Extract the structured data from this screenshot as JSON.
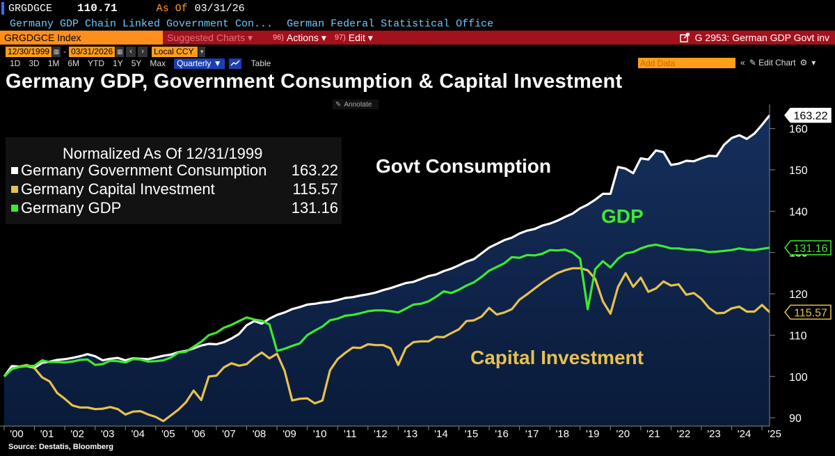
{
  "header": {
    "ticker": "GRGDGCE",
    "price": "110.71",
    "as_of_label": "As Of",
    "as_of_date": "03/31/26",
    "description": "Germany GDP Chain Linked Government Con...",
    "source_name": "German Federal Statistical Office"
  },
  "toolbar": {
    "index_label": "GRGDGCE Index",
    "suggested_label": "Suggested Charts",
    "actions_num": "96)",
    "actions_label": "Actions",
    "edit_num": "97)",
    "edit_label": "Edit",
    "chart_id_label": "G 2953: German GDP Govt inv"
  },
  "range": {
    "start_date": "12/30/1999",
    "end_date": "03/31/2026",
    "currency": "Local CCY"
  },
  "periods": [
    "1D",
    "3D",
    "1M",
    "6M",
    "YTD",
    "1Y",
    "5Y",
    "Max"
  ],
  "frequency": "Quarterly",
  "table_label": "Table",
  "add_data_placeholder": "Add Data",
  "edit_chart_label": "Edit Chart",
  "annotate_label": "Annotate",
  "chart_data": {
    "type": "line",
    "title": "Germany GDP, Government Consumption & Capital Investment",
    "legend_header": "Normalized As Of 12/31/1999",
    "xlabel": "",
    "ylabel": "",
    "ylim": [
      88,
      165
    ],
    "yticks": [
      90,
      100,
      110,
      120,
      130,
      140,
      150,
      160
    ],
    "xticks": [
      "'00",
      "'01",
      "'02",
      "'03",
      "'04",
      "'05",
      "'06",
      "'07",
      "'08",
      "'09",
      "'10",
      "'11",
      "'12",
      "'13",
      "'14",
      "'15",
      "'16",
      "'17",
      "'18",
      "'19",
      "'20",
      "'21",
      "'22",
      "'23",
      "'24",
      "'25"
    ],
    "x_start": 2000.0,
    "x_step": 0.25,
    "grid": false,
    "legend_position": "top-left",
    "annotations": [
      {
        "text": "Govt Consumption",
        "color": "#ffffff"
      },
      {
        "text": "GDP",
        "color": "#3dea2f"
      },
      {
        "text": "Capital Investment",
        "color": "#e7c14d"
      }
    ],
    "source": "Source: Destatis, Bloomberg",
    "series": [
      {
        "name": "Germany Government Consumption",
        "last_value": "163.22",
        "color": "#ffffff",
        "fill": true,
        "values": [
          100,
          102.5,
          102.4,
          102.5,
          102.1,
          103.3,
          103.6,
          104.0,
          104.2,
          104.5,
          104.9,
          105.4,
          104.9,
          103.9,
          104.3,
          104.5,
          103.9,
          104.4,
          104.3,
          104.2,
          104.6,
          105.0,
          105.3,
          105.9,
          106.2,
          106.8,
          107.5,
          107.9,
          107.8,
          108.3,
          109.2,
          110.3,
          112.4,
          113.4,
          112.8,
          114.0,
          114.9,
          115.5,
          116.3,
          116.8,
          117.4,
          117.6,
          117.9,
          118.1,
          118.5,
          119.0,
          119.2,
          119.6,
          119.9,
          120.3,
          120.9,
          121.4,
          122.0,
          122.6,
          122.9,
          123.6,
          124.3,
          124.7,
          125.5,
          126.1,
          126.9,
          127.8,
          128.4,
          129.8,
          131.2,
          132.1,
          133.0,
          133.6,
          134.6,
          135.3,
          135.7,
          136.5,
          137.0,
          137.7,
          138.6,
          139.4,
          140.7,
          141.6,
          142.8,
          144.2,
          144.2,
          150.7,
          150.3,
          149.2,
          152.8,
          152.5,
          154.7,
          154.3,
          151.2,
          151.5,
          152.2,
          152.1,
          152.8,
          153.4,
          153.3,
          156.1,
          157.7,
          158.4,
          157.5,
          158.8,
          160.9,
          163.22
        ]
      },
      {
        "name": "Germany Capital Investment",
        "last_value": "115.57",
        "color": "#e7c14d",
        "fill": false,
        "values": [
          100,
          101.8,
          102.4,
          102.8,
          102.0,
          99.8,
          98.8,
          96.0,
          94.6,
          93.0,
          92.5,
          92.5,
          92.1,
          92.2,
          92.6,
          92.1,
          90.8,
          91.5,
          91.6,
          90.8,
          90.2,
          89.2,
          90.6,
          92.0,
          93.8,
          96.6,
          94.3,
          100.0,
          100.2,
          102.2,
          103.2,
          102.6,
          103.0,
          104.6,
          105.8,
          104.4,
          105.5,
          101.4,
          94.2,
          94.6,
          94.7,
          93.5,
          94.2,
          101.5,
          104.2,
          105.7,
          107.0,
          106.9,
          107.8,
          107.6,
          107.6,
          106.8,
          102.8,
          106.9,
          108.3,
          108.5,
          108.5,
          109.6,
          109.5,
          110.5,
          111.4,
          113.4,
          113.6,
          114.5,
          116.6,
          115.0,
          115.5,
          116.3,
          118.6,
          119.9,
          121.3,
          122.7,
          123.9,
          125.0,
          125.7,
          126.2,
          126.2,
          125.7,
          123.6,
          118.2,
          115.2,
          121.7,
          125.0,
          121.7,
          123.9,
          120.5,
          121.3,
          123.0,
          122.0,
          122.3,
          119.8,
          120.2,
          118.8,
          116.6,
          115.3,
          115.4,
          116.5,
          116.9,
          115.7,
          115.7,
          117.3,
          115.57
        ]
      },
      {
        "name": "Germany GDP",
        "last_value": "131.16",
        "color": "#3dea2f",
        "fill": false,
        "values": [
          100,
          101.8,
          102.3,
          102.5,
          102.6,
          103.9,
          103.5,
          103.5,
          103.4,
          103.6,
          104.0,
          104.1,
          102.8,
          103.0,
          103.8,
          103.7,
          103.4,
          104.2,
          104.1,
          103.6,
          103.7,
          103.9,
          104.6,
          105.8,
          106.0,
          107.2,
          108.4,
          110.0,
          110.6,
          111.8,
          112.5,
          113.4,
          114.3,
          113.8,
          113.5,
          112.6,
          106.2,
          106.7,
          107.4,
          108.0,
          110.0,
          111.1,
          112.1,
          113.6,
          114.0,
          114.7,
          114.9,
          115.3,
          115.8,
          116.0,
          116.0,
          115.8,
          115.5,
          116.4,
          117.4,
          117.6,
          118.2,
          119.3,
          120.6,
          120.2,
          121.0,
          122.0,
          122.8,
          124.1,
          125.6,
          126.5,
          127.4,
          128.9,
          128.7,
          129.4,
          129.3,
          129.7,
          130.6,
          130.5,
          130.7,
          130.0,
          128.5,
          116.3,
          126.0,
          127.9,
          126.4,
          128.5,
          129.8,
          130.1,
          131.0,
          131.6,
          131.9,
          131.5,
          131.0,
          131.0,
          130.7,
          130.7,
          130.5,
          130.1,
          130.2,
          130.4,
          130.6,
          131.0,
          130.7,
          130.6,
          130.9,
          131.16
        ]
      }
    ]
  }
}
